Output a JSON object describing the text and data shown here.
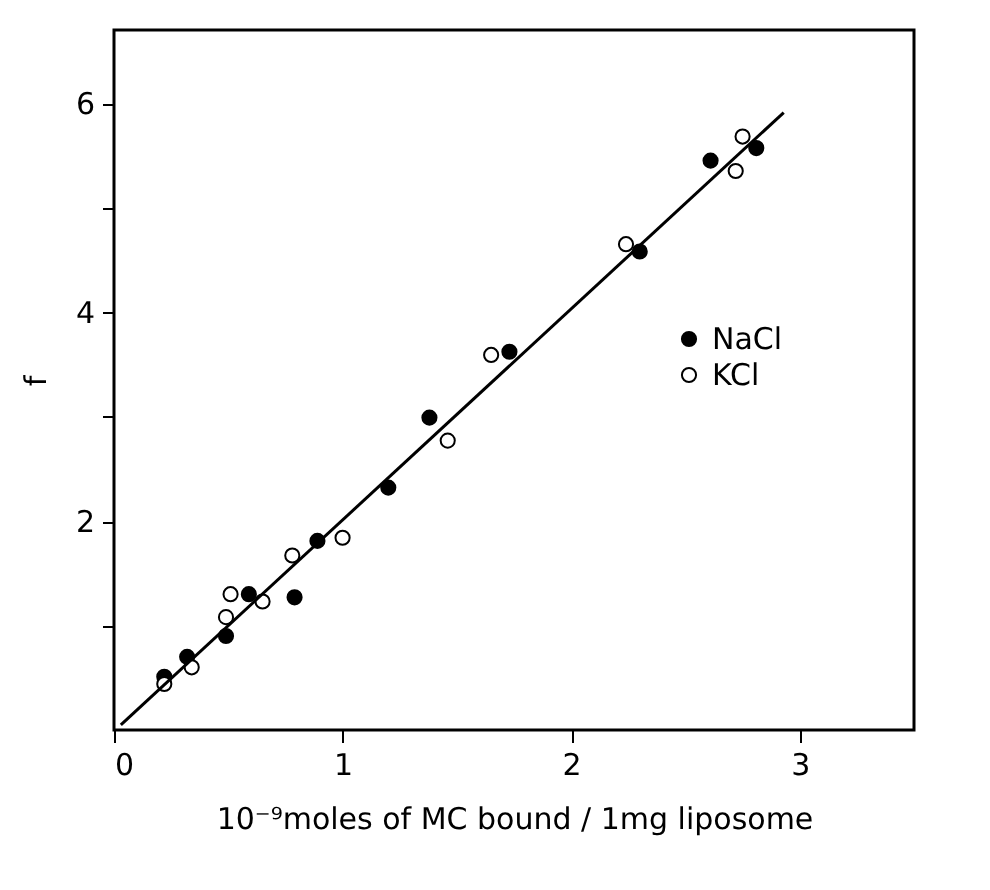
{
  "chart_data": {
    "type": "scatter",
    "xlabel": "10⁻⁹moles of MC bound / 1mg liposome",
    "ylabel": "f",
    "xlim": [
      0,
      3.5
    ],
    "ylim": [
      0,
      6.7
    ],
    "xticks": [
      0,
      1,
      2,
      3
    ],
    "yticks": [
      {
        "value": 1,
        "label": null
      },
      2,
      {
        "value": 3,
        "label": null
      },
      4,
      {
        "value": 5,
        "label": null
      },
      6
    ],
    "grid": false,
    "legend": "right",
    "marker": "circle",
    "series": [
      {
        "name": "NaCl",
        "color": "#000000",
        "x": [
          0.22,
          0.32,
          0.49,
          0.59,
          0.79,
          0.89,
          1.2,
          1.38,
          1.73,
          2.3,
          2.61,
          2.81
        ],
        "values": [
          0.51,
          0.7,
          0.9,
          1.3,
          1.27,
          1.81,
          2.32,
          2.99,
          3.62,
          4.58,
          5.45,
          5.57
        ]
      },
      {
        "name": "KCl",
        "color": "#ffffff",
        "x": [
          0.22,
          0.34,
          0.49,
          0.51,
          0.65,
          0.78,
          1.0,
          1.46,
          1.65,
          2.24,
          2.72,
          2.75
        ],
        "values": [
          0.44,
          0.6,
          1.08,
          1.3,
          1.23,
          1.67,
          1.84,
          2.77,
          3.59,
          4.65,
          5.35,
          5.68
        ]
      },
      {
        "type": "line",
        "marker": "none",
        "color": "#000000",
        "x": [
          0.03,
          2.93
        ],
        "values": [
          0.05,
          5.91
        ]
      }
    ]
  }
}
